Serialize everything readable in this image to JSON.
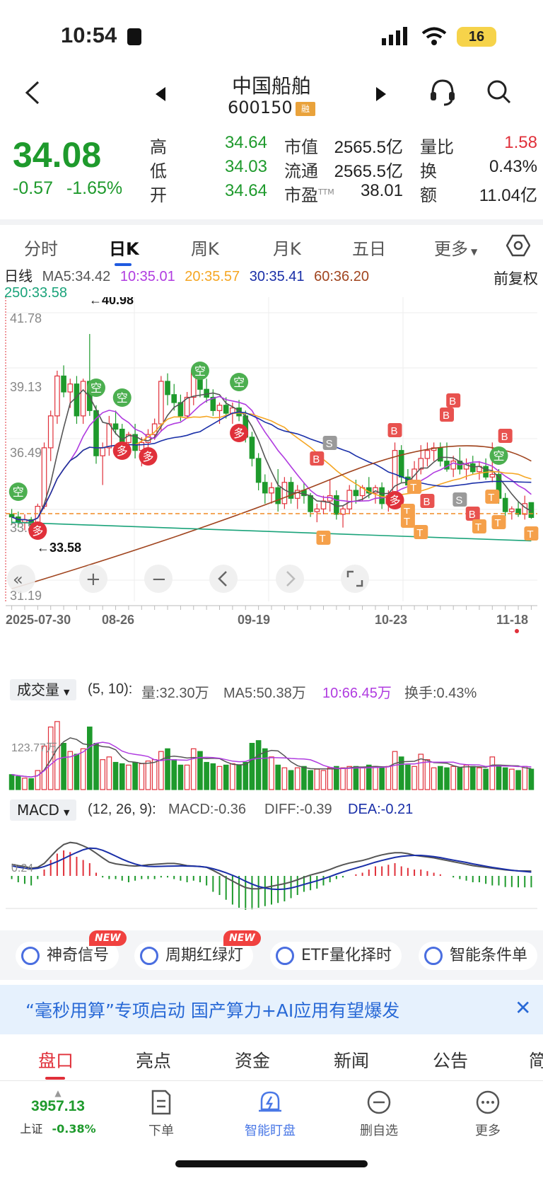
{
  "status_bar": {
    "time": "10:54",
    "battery": "16"
  },
  "nav": {
    "stock_name": "中国船舶",
    "stock_code": "600150",
    "margin_badge": "融"
  },
  "quote": {
    "price": "34.08",
    "change": "-0.57",
    "change_pct": "-1.65%",
    "fields": [
      {
        "label": "高",
        "value": "34.64",
        "color": "#1e9a2c"
      },
      {
        "label": "低",
        "value": "34.03",
        "color": "#1e9a2c"
      },
      {
        "label": "开",
        "value": "34.64",
        "color": "#1e9a2c"
      },
      {
        "label": "市值",
        "value": "2565.5亿",
        "color": "#222222"
      },
      {
        "label": "流通",
        "value": "2565.5亿",
        "color": "#222222"
      },
      {
        "label": "市盈",
        "value": "38.01",
        "color": "#222222",
        "superscript": "TTM"
      },
      {
        "label": "量比",
        "value": "1.58",
        "color": "#e0303a"
      },
      {
        "label": "换",
        "value": "0.43%",
        "color": "#222222"
      },
      {
        "label": "额",
        "value": "11.04亿",
        "color": "#222222"
      }
    ]
  },
  "period_tabs": [
    "分时",
    "日K",
    "周K",
    "月K",
    "五日",
    "更多"
  ],
  "active_period": "日K",
  "ma_legend": {
    "name": "日线",
    "ma5": "MA5:34.42",
    "ma10": "10:35.01",
    "ma20": "20:35.57",
    "ma30": "30:35.41",
    "ma60": "60:36.20",
    "ma250": "250:33.58",
    "colors": {
      "ma5": "#555555",
      "ma10": "#b03ce0",
      "ma20": "#f5a623",
      "ma30": "#1a2fa8",
      "ma60": "#a0441e",
      "ma250": "#1aa37a"
    }
  },
  "adjust_label": "前复权",
  "chart": {
    "y_ticks": [
      "41.78",
      "39.13",
      "36.49",
      "33.8",
      "31.19"
    ],
    "max_label": "←40.98",
    "min_label": "←33.58",
    "x_ticks": [
      "2025-07-30",
      "08-26",
      "09-19",
      "10-23",
      "11-18"
    ],
    "signal_labels": {
      "long": "多",
      "short": "空",
      "buy": "B",
      "sell": "S",
      "t": "T"
    }
  },
  "chart_data": {
    "type": "candlestick",
    "ylim": [
      31.19,
      41.78
    ],
    "y_ticks": [
      41.78,
      39.13,
      36.49,
      33.8,
      31.19
    ],
    "x_ticks": [
      "2025-07-30",
      "08-26",
      "09-19",
      "10-23",
      "11-18"
    ],
    "ohlc": [
      [
        34.2,
        34.4,
        33.8,
        34.1
      ],
      [
        34.1,
        34.3,
        33.7,
        33.9
      ],
      [
        33.9,
        34.2,
        33.6,
        34.0
      ],
      [
        34.0,
        34.1,
        33.58,
        33.8
      ],
      [
        33.8,
        34.6,
        33.7,
        34.5
      ],
      [
        34.5,
        36.9,
        34.4,
        36.7
      ],
      [
        36.7,
        38.1,
        36.2,
        37.9
      ],
      [
        37.9,
        39.6,
        37.6,
        39.4
      ],
      [
        39.4,
        39.8,
        38.6,
        38.8
      ],
      [
        38.8,
        39.3,
        38.2,
        39.1
      ],
      [
        39.1,
        39.4,
        37.6,
        37.9
      ],
      [
        37.9,
        39.3,
        37.6,
        39.2
      ],
      [
        39.2,
        40.98,
        37.9,
        38.1
      ],
      [
        38.1,
        38.3,
        36.1,
        36.4
      ],
      [
        36.4,
        36.9,
        35.3,
        36.7
      ],
      [
        36.7,
        37.9,
        36.4,
        37.6
      ],
      [
        37.6,
        38.1,
        37.2,
        37.4
      ],
      [
        37.4,
        37.6,
        36.6,
        36.9
      ],
      [
        36.9,
        37.3,
        36.4,
        37.2
      ],
      [
        37.2,
        37.6,
        36.3,
        36.6
      ],
      [
        36.6,
        37.1,
        36.0,
        36.9
      ],
      [
        36.9,
        37.4,
        36.7,
        37.2
      ],
      [
        37.2,
        37.8,
        37.0,
        37.6
      ],
      [
        37.6,
        39.4,
        37.3,
        39.2
      ],
      [
        39.2,
        39.5,
        38.3,
        38.7
      ],
      [
        38.7,
        39.1,
        38.1,
        38.4
      ],
      [
        38.4,
        38.7,
        37.7,
        37.9
      ],
      [
        37.9,
        38.8,
        37.8,
        38.6
      ],
      [
        38.6,
        39.8,
        38.3,
        39.6
      ],
      [
        39.6,
        39.7,
        38.6,
        38.9
      ],
      [
        38.9,
        39.3,
        38.4,
        38.6
      ],
      [
        38.6,
        38.9,
        37.9,
        38.1
      ],
      [
        38.1,
        38.4,
        37.6,
        38.3
      ],
      [
        38.3,
        38.6,
        37.8,
        38.0
      ],
      [
        38.0,
        38.4,
        37.6,
        38.2
      ],
      [
        38.2,
        38.5,
        37.7,
        37.9
      ],
      [
        37.9,
        38.1,
        36.9,
        37.1
      ],
      [
        37.1,
        37.3,
        36.0,
        36.3
      ],
      [
        36.3,
        36.5,
        35.1,
        35.4
      ],
      [
        35.4,
        35.7,
        34.6,
        35.0
      ],
      [
        35.0,
        35.4,
        34.6,
        35.2
      ],
      [
        35.2,
        35.9,
        34.3,
        34.6
      ],
      [
        34.6,
        35.6,
        34.4,
        35.4
      ],
      [
        35.4,
        35.6,
        34.6,
        34.8
      ],
      [
        34.8,
        35.3,
        34.4,
        35.1
      ],
      [
        35.1,
        35.4,
        34.6,
        34.9
      ],
      [
        34.9,
        35.0,
        34.1,
        34.3
      ],
      [
        34.3,
        34.6,
        33.9,
        34.4
      ],
      [
        34.4,
        34.9,
        34.2,
        34.7
      ],
      [
        34.7,
        35.5,
        34.3,
        34.9
      ],
      [
        34.9,
        35.1,
        34.0,
        34.2
      ],
      [
        34.2,
        34.5,
        33.7,
        34.4
      ],
      [
        34.4,
        35.3,
        34.2,
        35.1
      ],
      [
        35.1,
        35.5,
        34.6,
        34.9
      ],
      [
        34.9,
        35.3,
        34.7,
        35.2
      ],
      [
        35.2,
        35.6,
        34.8,
        35.0
      ],
      [
        35.0,
        35.3,
        34.6,
        35.2
      ],
      [
        35.2,
        35.4,
        34.4,
        34.6
      ],
      [
        34.6,
        35.1,
        34.3,
        34.9
      ],
      [
        34.9,
        36.9,
        34.8,
        36.6
      ],
      [
        36.6,
        36.8,
        35.4,
        35.6
      ],
      [
        35.6,
        35.9,
        35.0,
        35.3
      ],
      [
        35.3,
        36.2,
        35.1,
        35.9
      ],
      [
        35.9,
        36.8,
        35.7,
        36.3
      ],
      [
        36.3,
        36.9,
        36.0,
        36.6
      ],
      [
        36.6,
        36.9,
        36.2,
        36.7
      ],
      [
        36.7,
        36.9,
        36.0,
        36.2
      ],
      [
        36.2,
        36.9,
        35.8,
        35.9
      ],
      [
        35.9,
        36.4,
        35.6,
        36.2
      ],
      [
        36.2,
        36.7,
        35.7,
        35.9
      ],
      [
        35.9,
        36.3,
        35.5,
        36.1
      ],
      [
        36.1,
        36.4,
        35.7,
        35.8
      ],
      [
        35.8,
        36.2,
        35.5,
        36.0
      ],
      [
        36.0,
        36.3,
        35.5,
        35.6
      ],
      [
        35.6,
        36.9,
        35.4,
        35.7
      ],
      [
        35.7,
        35.9,
        34.6,
        34.8
      ],
      [
        34.8,
        35.0,
        34.1,
        34.3
      ],
      [
        34.3,
        34.5,
        34.0,
        34.4
      ],
      [
        34.4,
        34.7,
        34.1,
        34.2
      ],
      [
        34.2,
        34.9,
        34.0,
        34.6
      ],
      [
        34.64,
        34.64,
        34.03,
        34.08
      ]
    ],
    "volume": [
      55,
      48,
      42,
      40,
      70,
      160,
      230,
      250,
      170,
      140,
      130,
      150,
      230,
      170,
      110,
      120,
      100,
      95,
      90,
      100,
      95,
      105,
      110,
      140,
      150,
      110,
      90,
      90,
      150,
      140,
      100,
      95,
      85,
      90,
      95,
      90,
      100,
      170,
      180,
      150,
      120,
      90,
      80,
      70,
      80,
      85,
      70,
      75,
      70,
      80,
      85,
      80,
      85,
      85,
      80,
      90,
      85,
      80,
      85,
      140,
      120,
      90,
      85,
      130,
      110,
      80,
      85,
      80,
      85,
      80,
      90,
      85,
      80,
      75,
      120,
      90,
      80,
      75,
      70,
      85,
      75
    ],
    "macd": [
      -0.1,
      -0.2,
      -0.25,
      -0.3,
      -0.1,
      0.2,
      0.5,
      0.7,
      0.8,
      0.75,
      0.6,
      0.5,
      0.4,
      0.1,
      -0.05,
      -0.1,
      -0.1,
      -0.15,
      -0.2,
      -0.15,
      -0.1,
      -0.1,
      -0.1,
      -0.05,
      -0.05,
      -0.1,
      -0.15,
      -0.2,
      -0.15,
      -0.2,
      -0.3,
      -0.5,
      -0.6,
      -0.75,
      -0.9,
      -1.0,
      -1.1,
      -1.05,
      -1.0,
      -0.95,
      -0.9,
      -0.85,
      -0.8,
      -0.7,
      -0.6,
      -0.5,
      -0.45,
      -0.4,
      -0.3,
      -0.2,
      -0.1,
      -0.05,
      0.0,
      0.05,
      0.1,
      0.2,
      0.3,
      0.3,
      0.35,
      0.4,
      0.3,
      0.25,
      0.2,
      0.2,
      0.15,
      0.1,
      0.05,
      0.0,
      -0.05,
      -0.1,
      -0.15,
      -0.2,
      -0.2,
      -0.25,
      -0.3,
      -0.3,
      -0.35,
      -0.35,
      -0.36,
      -0.36,
      -0.36
    ]
  },
  "volume_panel": {
    "label": "成交量",
    "params": "(5, 10):",
    "vol": "量:32.30万",
    "ma5": "MA5:50.38万",
    "ma10": "10:66.45万",
    "turnover": "换手:0.43%",
    "tick": "123.77万"
  },
  "macd_panel": {
    "label": "MACD",
    "params": "(12, 26, 9):",
    "macd": "MACD:-0.36",
    "diff": "DIFF:-0.39",
    "dea": "DEA:-0.21",
    "tick": "0.24"
  },
  "tools": [
    "神奇信号",
    "周期红绿灯",
    "ETF量化择时",
    "智能条件单"
  ],
  "new_badge": "NEW",
  "banner": {
    "text": "“毫秒用算”专项启动 国产算力+AI应用有望爆发"
  },
  "info_tabs": [
    "盘口",
    "亮点",
    "资金",
    "新闻",
    "公告",
    "简"
  ],
  "toolbar": {
    "index_value": "3957.13",
    "index_name": "上证",
    "index_change": "-0.38%",
    "items": [
      "下单",
      "智能盯盘",
      "删自选",
      "更多"
    ]
  }
}
